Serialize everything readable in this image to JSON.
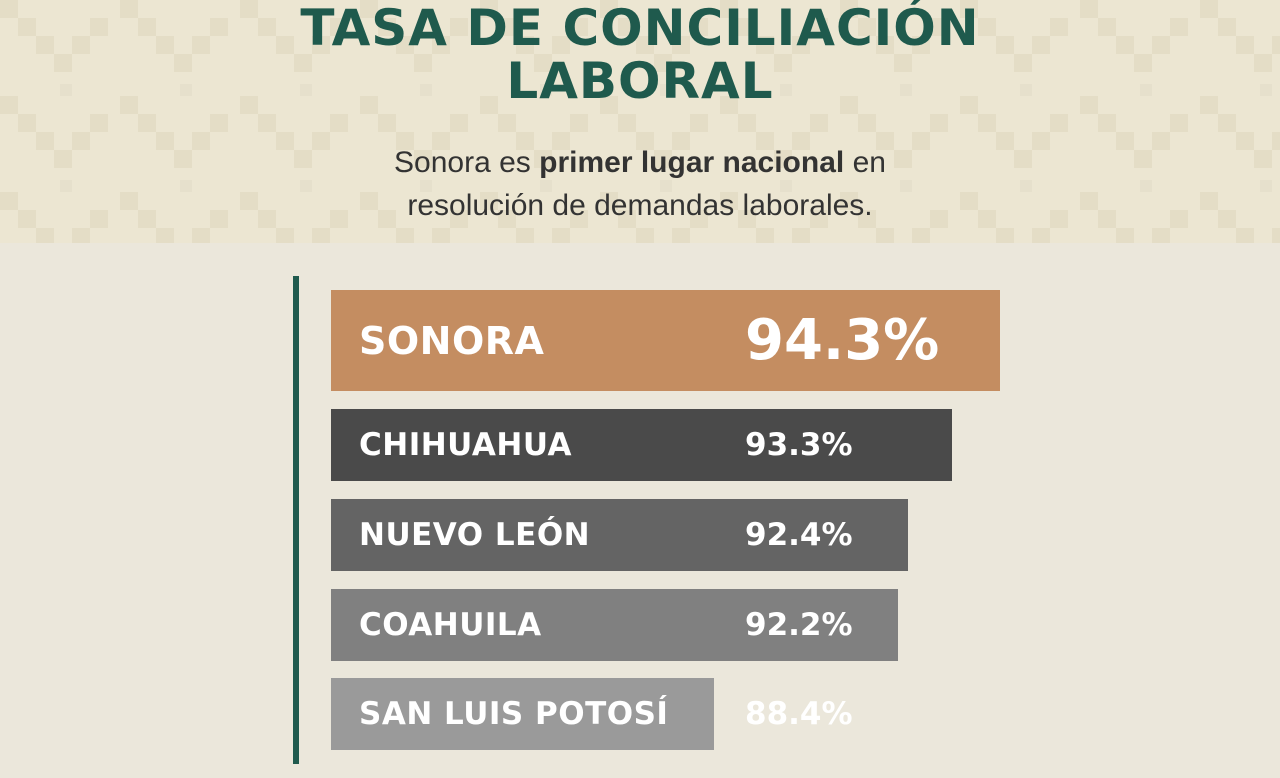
{
  "header": {
    "title_line1": "TASA DE CONCILIACIÓN",
    "title_line2": "LABORAL",
    "subtitle_pre": "Sonora es ",
    "subtitle_bold": "primer lugar nacional",
    "subtitle_post": " en",
    "subtitle_line2": "resolución de demandas laborales."
  },
  "colors": {
    "title": "#1f5a4d",
    "highlight_bar": "#c48d61",
    "bar_shades": [
      "#4a4a4a",
      "#646464",
      "#808080",
      "#9a9a9a"
    ]
  },
  "chart_data": {
    "type": "bar",
    "orientation": "horizontal",
    "title": "TASA DE CONCILIACIÓN LABORAL",
    "xlabel": "",
    "ylabel": "",
    "categories": [
      "SONORA",
      "CHIHUAHUA",
      "NUEVO LEÓN",
      "COAHUILA",
      "SAN LUIS POTOSÍ"
    ],
    "values": [
      94.3,
      93.3,
      92.4,
      92.2,
      88.4
    ],
    "value_labels": [
      "94.3%",
      "93.3%",
      "92.4%",
      "92.2%",
      "88.4%"
    ],
    "highlight": "SONORA",
    "grid": false
  }
}
